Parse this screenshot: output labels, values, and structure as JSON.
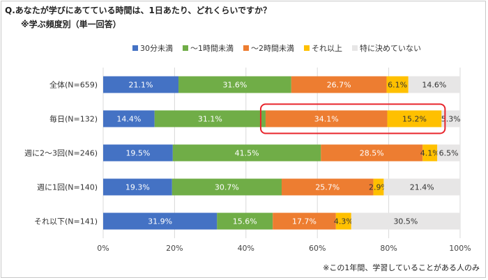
{
  "header": {
    "title": "Q.あなたが学びにあてている時間は、1日あたり、どれくらいですか？",
    "subtitle": "※学ぶ頻度別（単一回答）"
  },
  "footnote": "※この1年間、学習していることがある人のみ",
  "chart_data": {
    "type": "bar",
    "orientation": "horizontal",
    "stacked": true,
    "categories": [
      "全体(N=659)",
      "毎日(N=132)",
      "週に2～3回(N=246)",
      "週に1回(N=140)",
      "それ以下(N=141)"
    ],
    "series": [
      {
        "name": "30分未満",
        "color": "#4472c4",
        "values": [
          21.1,
          14.4,
          19.5,
          19.3,
          31.9
        ]
      },
      {
        "name": "～1時間未満",
        "color": "#70ad47",
        "values": [
          31.6,
          31.1,
          41.5,
          30.7,
          15.6
        ]
      },
      {
        "name": "～2時間未満",
        "color": "#ed7d31",
        "values": [
          26.7,
          34.1,
          28.5,
          25.7,
          17.7
        ]
      },
      {
        "name": "それ以上",
        "color": "#ffc000",
        "values": [
          6.1,
          15.2,
          4.1,
          2.9,
          4.3
        ]
      },
      {
        "name": "特に決めていない",
        "color": "#e7e6e6",
        "values": [
          14.6,
          5.3,
          6.5,
          21.4,
          30.5
        ]
      }
    ],
    "xlim": [
      0,
      100
    ],
    "xticks": [
      "0%",
      "20%",
      "40%",
      "60%",
      "80%",
      "100%"
    ],
    "value_suffix": "%",
    "legend_position": "top",
    "grid": true,
    "highlight": {
      "category_index": 1,
      "series_from": 2,
      "series_to": 3,
      "color": "#e8242b"
    }
  }
}
